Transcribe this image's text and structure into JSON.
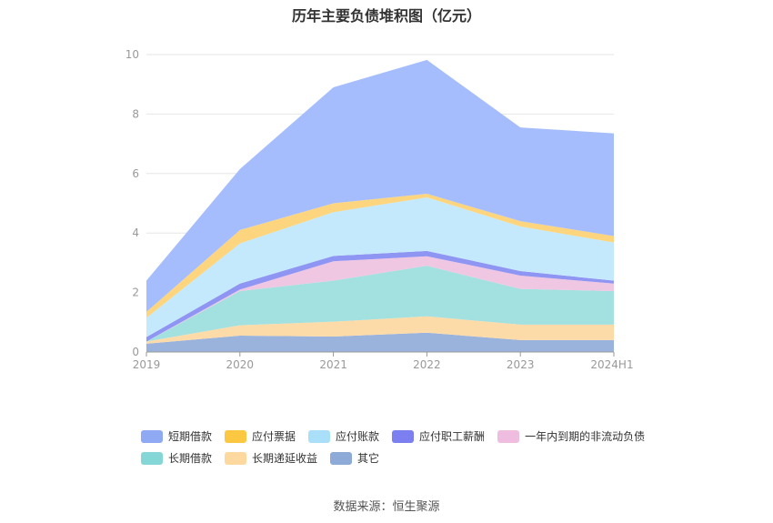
{
  "title": "历年主要负债堆积图（亿元）",
  "source": "数据来源：恒生聚源",
  "chart_data": {
    "type": "area",
    "stacked": true,
    "title": "历年主要负债堆积图（亿元）",
    "categories": [
      "2019",
      "2020",
      "2021",
      "2022",
      "2023",
      "2024H1"
    ],
    "ylim": [
      0,
      10
    ],
    "yticks": [
      0,
      2,
      4,
      6,
      8,
      10
    ],
    "grid": true,
    "legend_position": "bottom",
    "series": [
      {
        "name": "其它",
        "color": "#9ab3dc",
        "values": [
          0.28,
          0.55,
          0.52,
          0.65,
          0.4,
          0.4
        ]
      },
      {
        "name": "长期递延收益",
        "color": "#fddba8",
        "values": [
          0.07,
          0.35,
          0.5,
          0.55,
          0.52,
          0.52
        ]
      },
      {
        "name": "长期借款",
        "color": "#a3e0e0",
        "values": [
          0.0,
          1.15,
          1.38,
          1.7,
          1.2,
          1.13
        ]
      },
      {
        "name": "一年内到期的非流动负债",
        "color": "#f0c7e2",
        "values": [
          0.0,
          0.05,
          0.65,
          0.32,
          0.45,
          0.25
        ]
      },
      {
        "name": "应付职工薪酬",
        "color": "#8f95f2",
        "values": [
          0.15,
          0.2,
          0.18,
          0.18,
          0.15,
          0.1
        ]
      },
      {
        "name": "应付账款",
        "color": "#c5e9fc",
        "values": [
          0.65,
          1.35,
          1.47,
          1.8,
          1.5,
          1.28
        ]
      },
      {
        "name": "应付票据",
        "color": "#fdd57e",
        "values": [
          0.2,
          0.45,
          0.3,
          0.12,
          0.18,
          0.22
        ]
      },
      {
        "name": "短期借款",
        "color": "#a5bdfc",
        "values": [
          1.05,
          2.05,
          3.9,
          4.5,
          3.15,
          3.45
        ]
      }
    ],
    "legend_order": [
      "短期借款",
      "应付票据",
      "应付账款",
      "应付职工薪酬",
      "一年内到期的非流动负债",
      "长期借款",
      "长期递延收益",
      "其它"
    ],
    "legend_colors": {
      "短期借款": "#8fa9f5",
      "应付票据": "#fcc741",
      "应付账款": "#a9dff9",
      "应付职工薪酬": "#7b7ff0",
      "一年内到期的非流动负债": "#eebde0",
      "长期借款": "#85d6d6",
      "长期递延收益": "#fdd9a0",
      "其它": "#8eaad8"
    }
  }
}
